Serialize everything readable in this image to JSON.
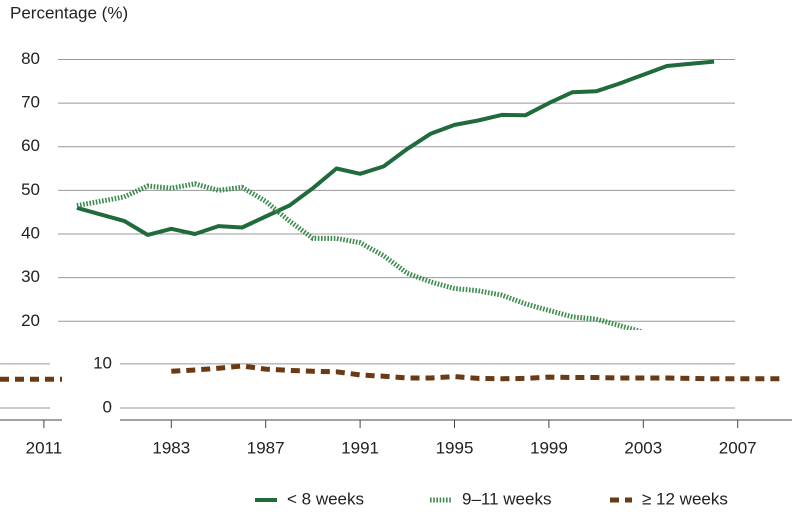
{
  "chart_data": [
    {
      "type": "line",
      "ylabel": "Percentage (%)",
      "x": [
        1979,
        1980,
        1981,
        1982,
        1983,
        1984,
        1985,
        1986,
        1987,
        1988,
        1989,
        1990,
        1991,
        1992,
        1993,
        1994,
        1995,
        1996,
        1997,
        1998,
        1999,
        2000,
        2001,
        2002,
        2003,
        2004,
        2005,
        2006,
        2007,
        2008,
        2009
      ],
      "xlim": [
        1978.2,
        2009.3
      ],
      "ylim": [
        18,
        84
      ],
      "yticks": [
        20,
        30,
        40,
        50,
        60,
        70,
        80
      ],
      "grid": true,
      "series": [
        {
          "name": "< 8 weeks",
          "color": "#1f6b3b",
          "style": "solid",
          "values": [
            46,
            44.5,
            43,
            39.8,
            41.2,
            40,
            41.8,
            41.5,
            44,
            46.5,
            50.5,
            55,
            53.8,
            55.5,
            59.5,
            63,
            65,
            66,
            67.3,
            67.2,
            70,
            72.5,
            72.7,
            74.5,
            76.5,
            78.5,
            79,
            79.5,
            null,
            null,
            null
          ]
        },
        {
          "name": "9–11 weeks",
          "color": "#3d8c4e",
          "style": "dotted",
          "values": [
            46.5,
            47.5,
            48.5,
            51,
            50.5,
            51.5,
            50,
            50.7,
            47.5,
            43,
            39,
            39,
            38,
            35,
            31,
            29,
            27.5,
            27,
            26,
            24,
            22.5,
            21,
            20.5,
            19,
            17.5,
            16.5,
            16,
            16,
            16,
            15.5,
            15
          ]
        }
      ]
    },
    {
      "type": "line",
      "x": [
        1979,
        1980,
        1981,
        1982,
        1983,
        1984,
        1985,
        1986,
        1987,
        1988,
        1989,
        1990,
        1991,
        1992,
        1993,
        1994,
        1995,
        1996,
        1997,
        1998,
        1999,
        2000,
        2001,
        2002,
        2003,
        2004,
        2005,
        2006,
        2007,
        2008,
        2009
      ],
      "xlim": [
        1978.2,
        2009.3
      ],
      "ylim": [
        -2.5,
        12
      ],
      "yticks": [
        0,
        10
      ],
      "grid": true,
      "xticks": [
        1983,
        1987,
        1991,
        1995,
        1999,
        2003,
        2007
      ],
      "series": [
        {
          "name": "≥ 12 weeks",
          "color": "#6b3a12",
          "style": "dashed",
          "values": [
            null,
            null,
            null,
            null,
            8.3,
            8.6,
            9,
            9.5,
            8.8,
            8.5,
            8.3,
            8.2,
            7.5,
            7.2,
            6.8,
            6.8,
            7.1,
            6.7,
            6.6,
            6.7,
            7,
            6.9,
            6.9,
            6.8,
            6.8,
            6.8,
            6.7,
            6.6,
            6.6,
            6.6,
            6.6
          ]
        }
      ]
    },
    {
      "type": "line",
      "x": [
        2009.3,
        2011.7
      ],
      "xlim": [
        2009.3,
        2011.7
      ],
      "ylim": [
        -2.5,
        12
      ],
      "yticks": [
        0,
        10
      ],
      "grid": true,
      "xticks": [
        2011
      ],
      "series": [
        {
          "color": "#6b3a12",
          "style": "dashed",
          "values": [
            6.5,
            6.5
          ]
        }
      ]
    }
  ]
}
